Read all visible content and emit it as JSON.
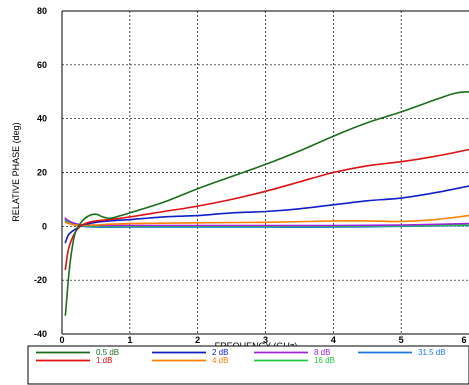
{
  "chart_data": {
    "type": "line",
    "xlabel": "FREQUENCY (GHz)",
    "ylabel": "RELATIVE PHASE (deg)",
    "xlim": [
      0,
      6
    ],
    "ylim": [
      -40,
      80
    ],
    "x_ticks": [
      "0",
      "1",
      "2",
      "3",
      "4",
      "5",
      "6"
    ],
    "y_ticks": [
      "-40",
      "-20",
      "0",
      "20",
      "40",
      "60",
      "80"
    ],
    "grid": true,
    "legend_position": "bottom",
    "series": [
      {
        "name": "0.5 dB",
        "color": "#1a6e1a",
        "x": [
          0.05,
          0.1,
          0.15,
          0.2,
          0.3,
          0.4,
          0.5,
          0.6,
          0.7,
          0.8,
          1.0,
          1.5,
          2.0,
          2.5,
          3.0,
          3.5,
          4.0,
          4.5,
          5.0,
          5.5,
          5.8,
          6.0
        ],
        "y": [
          -33,
          -18,
          -8,
          -2,
          2,
          4,
          4.5,
          3.5,
          3,
          3.5,
          5,
          9,
          14,
          18.5,
          23,
          28,
          33.5,
          38.5,
          42.5,
          47,
          49.5,
          50
        ]
      },
      {
        "name": "1 dB",
        "color": "#e01010",
        "x": [
          0.05,
          0.1,
          0.2,
          0.3,
          0.4,
          0.5,
          0.7,
          1.0,
          1.5,
          2.0,
          2.5,
          3.0,
          3.5,
          4.0,
          4.5,
          5.0,
          5.5,
          6.0
        ],
        "y": [
          -16,
          -8,
          -2,
          0.5,
          1.5,
          2,
          2.5,
          3.5,
          5.5,
          7.5,
          10,
          13,
          16.5,
          20,
          22.5,
          24,
          26,
          28.5
        ]
      },
      {
        "name": "2 dB",
        "color": "#1020c8",
        "x": [
          0.05,
          0.1,
          0.2,
          0.3,
          0.4,
          0.5,
          0.7,
          1.0,
          1.5,
          2.0,
          2.5,
          3.0,
          3.5,
          4.0,
          4.5,
          5.0,
          5.5,
          6.0
        ],
        "y": [
          -6,
          -3,
          -1,
          0.5,
          1,
          1.5,
          2,
          2.5,
          3.5,
          4,
          5,
          5.5,
          6.5,
          8,
          9.5,
          10.5,
          12.5,
          15
        ]
      },
      {
        "name": "4 dB",
        "color": "#ff7f00",
        "x": [
          0.05,
          0.1,
          0.2,
          0.3,
          0.5,
          0.7,
          1.0,
          2.0,
          3.0,
          4.0,
          4.5,
          5.0,
          5.5,
          6.0
        ],
        "y": [
          1.5,
          1,
          0.5,
          0.5,
          0.5,
          0.8,
          1,
          1.3,
          1.5,
          2,
          2,
          1.8,
          2.5,
          4
        ]
      },
      {
        "name": "8 dB",
        "color": "#a020e0",
        "x": [
          0.05,
          0.1,
          0.2,
          0.3,
          0.5,
          1.0,
          2.0,
          3.0,
          4.0,
          5.0,
          6.0
        ],
        "y": [
          3,
          2,
          1,
          0.5,
          0.3,
          0.3,
          0.3,
          0.3,
          0.3,
          0.5,
          1
        ]
      },
      {
        "name": "16 dB",
        "color": "#22c840",
        "x": [
          0.05,
          0.1,
          0.2,
          0.3,
          0.5,
          1.0,
          2.0,
          3.0,
          4.0,
          5.0,
          6.0
        ],
        "y": [
          2.5,
          1.5,
          0.8,
          0.3,
          0,
          0,
          0,
          0,
          0,
          0.2,
          0.5
        ]
      },
      {
        "name": "31.5 dB",
        "color": "#1a78e0",
        "x": [
          0.05,
          0.1,
          0.2,
          0.3,
          0.5,
          1.0,
          2.0,
          3.0,
          4.0,
          5.0,
          6.0
        ],
        "y": [
          2,
          1.5,
          0.5,
          0,
          -0.3,
          -0.3,
          -0.3,
          -0.3,
          -0.3,
          0,
          0.3
        ]
      }
    ]
  }
}
